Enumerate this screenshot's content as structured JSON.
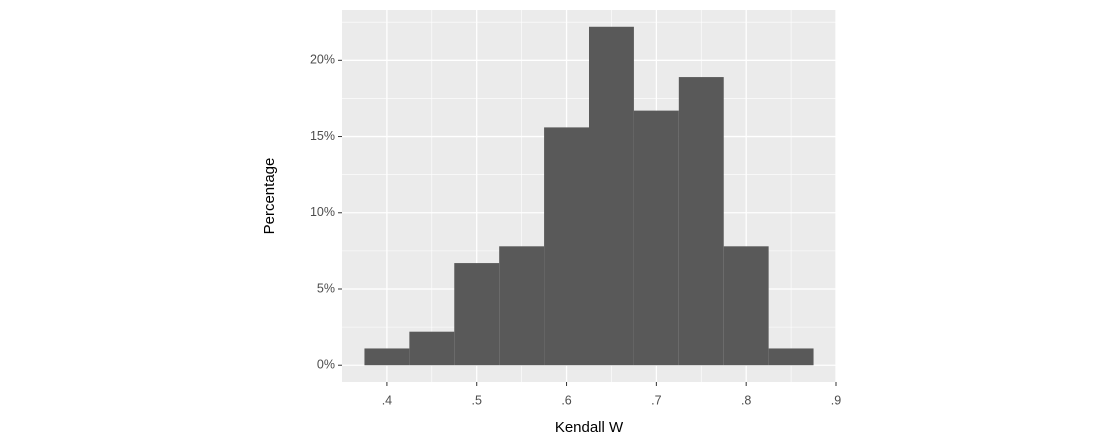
{
  "chart_data": {
    "type": "histogram",
    "xlabel": "Kendall W",
    "ylabel": "Percentage",
    "bins": [
      0.375,
      0.425,
      0.475,
      0.525,
      0.575,
      0.625,
      0.675,
      0.725,
      0.775,
      0.825,
      0.875
    ],
    "values": [
      1.1,
      2.2,
      6.7,
      7.8,
      15.6,
      22.2,
      16.7,
      18.9,
      7.8,
      1.1
    ],
    "color": "#595959",
    "xlim": [
      0.35,
      0.9
    ],
    "ylim": [
      -1.1,
      23.3
    ],
    "xticks": [
      {
        "value": 0.4,
        "label": ".4"
      },
      {
        "value": 0.5,
        "label": ".5"
      },
      {
        "value": 0.6,
        "label": ".6"
      },
      {
        "value": 0.7,
        "label": ".7"
      },
      {
        "value": 0.8,
        "label": ".8"
      },
      {
        "value": 0.9,
        "label": ".9"
      }
    ],
    "yticks": [
      {
        "value": 0,
        "label": "0%"
      },
      {
        "value": 5,
        "label": "5%"
      },
      {
        "value": 10,
        "label": "10%"
      },
      {
        "value": 15,
        "label": "15%"
      },
      {
        "value": 20,
        "label": "20%"
      }
    ],
    "grid": true
  }
}
